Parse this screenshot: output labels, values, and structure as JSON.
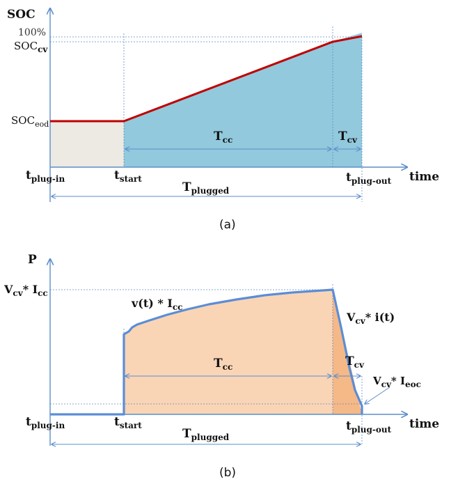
{
  "panel_a": {
    "y_axis_label": "SOC",
    "x_axis_label": "time",
    "y_tick_full": "100%",
    "y_tick_cv": {
      "main": "SOC",
      "sub": "cv"
    },
    "y_tick_eod": {
      "main": "SOC",
      "sub": "eod"
    },
    "t_plug_in": {
      "main": "t",
      "sub": "plug-in"
    },
    "t_start": {
      "main": "t",
      "sub": "start"
    },
    "t_plug_out": {
      "main": "t",
      "sub": "plug-out"
    },
    "T_cc": {
      "main": "T",
      "sub": "cc"
    },
    "T_cv": {
      "main": "T",
      "sub": "cv"
    },
    "T_plugged": {
      "main": "T",
      "sub": "plugged"
    },
    "caption": "(a)"
  },
  "panel_b": {
    "y_axis_label": "P",
    "x_axis_label": "time",
    "y_tick_cc": {
      "a": "V",
      "a_sub": "cv",
      "op": "* I",
      "b_sub": "cc"
    },
    "curve_label_cc": {
      "main": "v(t) * I",
      "sub": "cc"
    },
    "curve_label_cv": {
      "a": "V",
      "a_sub": "cv",
      "rest": "* i(t)"
    },
    "label_eoc": {
      "a": "V",
      "a_sub": "cv",
      "op": "* I",
      "b_sub": "eoc"
    },
    "t_plug_in": {
      "main": "t",
      "sub": "plug-in"
    },
    "t_start": {
      "main": "t",
      "sub": "start"
    },
    "t_plug_out": {
      "main": "t",
      "sub": "plug-out"
    },
    "T_cc": {
      "main": "T",
      "sub": "cc"
    },
    "T_cv": {
      "main": "T",
      "sub": "cv"
    },
    "T_plugged": {
      "main": "T",
      "sub": "plugged"
    },
    "caption": "(b)"
  },
  "colors": {
    "axis": "#5b8dc9",
    "soc_line": "#c00000",
    "soc_fill_cc": "#92c9dd",
    "soc_fill_idle": "#eceae2",
    "power_line": "#5b8dd6",
    "power_fill": "#f9d5b6",
    "power_fill_cv": "#f5b887"
  }
}
